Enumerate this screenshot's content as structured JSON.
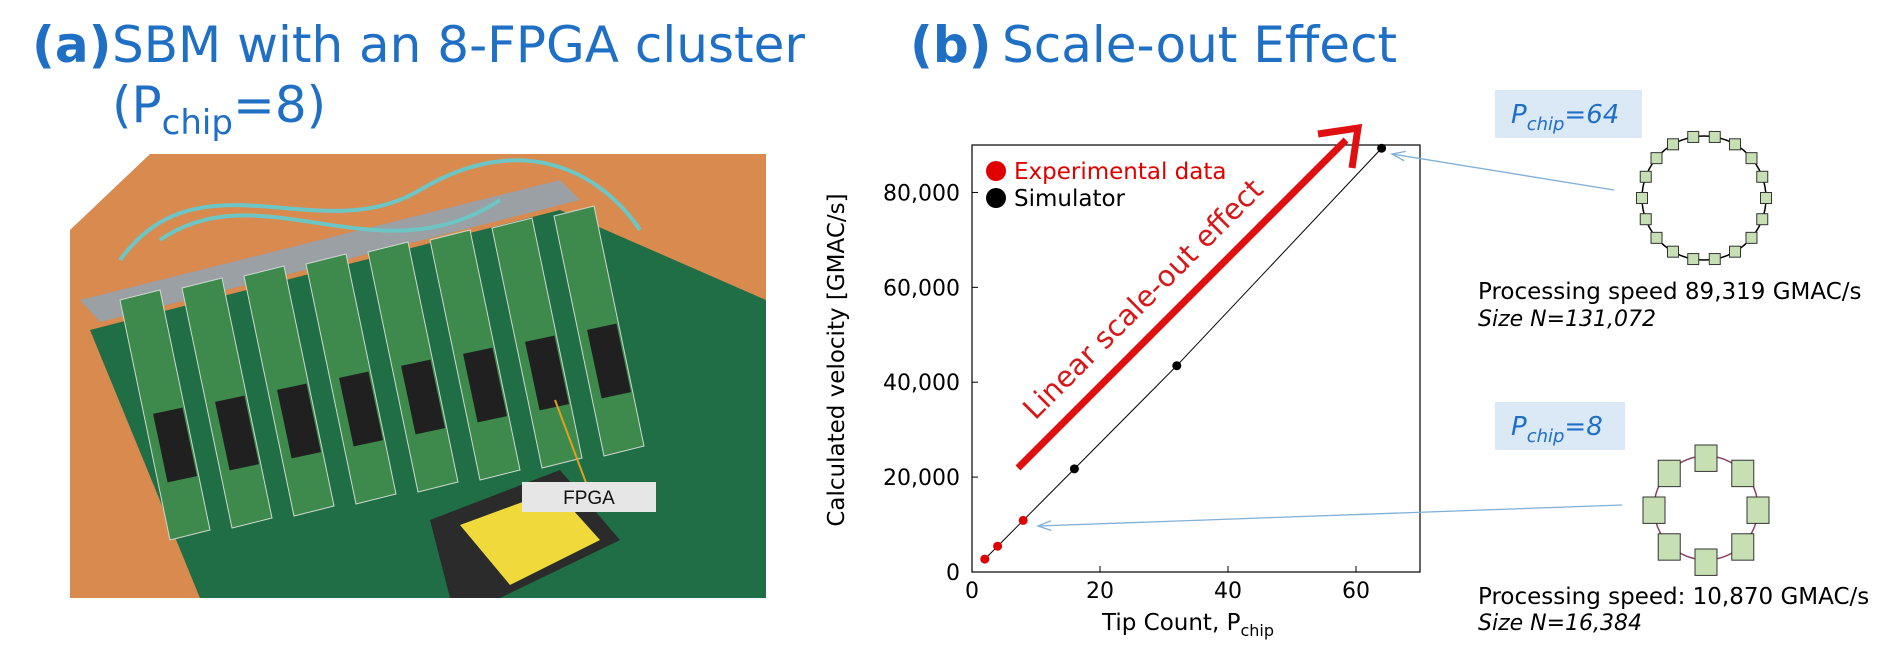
{
  "panel_a": {
    "label": "(a)",
    "title": "SBM with an 8-FPGA cluster",
    "title_line2": {
      "before": "(P",
      "sub": "chip",
      "after": "=8)"
    },
    "photo_label": "FPGA"
  },
  "panel_b": {
    "label": "(b)",
    "title": "Scale-out Effect"
  },
  "chart_data": {
    "type": "scatter",
    "x_label": {
      "text": "Tip Count, P",
      "sub": "chip"
    },
    "y_label": "Calculated velocity [GMAC/s]",
    "annotation": "Linear scale-out effect",
    "legend_position": "upper left",
    "series": [
      {
        "name": "Experimental data",
        "color": "#e00000",
        "x": [
          2,
          4,
          8
        ],
        "values": [
          2718,
          5435,
          10870
        ]
      },
      {
        "name": "Simulator",
        "color": "#000000",
        "x": [
          16,
          32,
          64
        ],
        "values": [
          21740,
          43480,
          89319
        ]
      }
    ],
    "xlim": [
      0,
      70
    ],
    "xticks": [
      0,
      20,
      40,
      60
    ],
    "ylim": [
      0,
      90000
    ],
    "yticks": [
      0,
      {
        "value": 20000,
        "label": "20,000"
      },
      {
        "value": 40000,
        "label": "40,000"
      },
      {
        "value": 60000,
        "label": "60,000"
      },
      {
        "value": 80000,
        "label": "80,000"
      }
    ]
  },
  "configs": [
    {
      "p": {
        "base": "P",
        "sub": "chip",
        "rest": "=64"
      },
      "speed": "Processing speed 89,319 GMAC/s",
      "size": "Size N=131,072"
    },
    {
      "p": {
        "base": "P",
        "sub": "chip",
        "rest": "=8"
      },
      "speed": "Processing speed: 10,870 GMAC/s",
      "size": "Size N=16,384"
    }
  ]
}
